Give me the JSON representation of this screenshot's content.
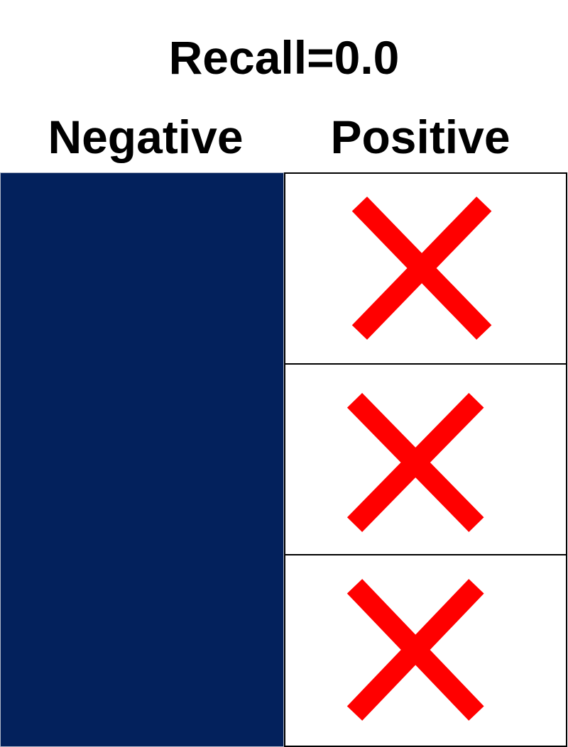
{
  "title": "Recall=0.0",
  "columns": {
    "negative": {
      "label": "Negative",
      "fill_color": "#03215c"
    },
    "positive": {
      "label": "Positive",
      "cells": [
        {
          "mark": "x-mark-icon"
        },
        {
          "mark": "x-mark-icon"
        },
        {
          "mark": "x-mark-icon"
        }
      ]
    }
  },
  "colors": {
    "x_mark": "#ff0000",
    "cell_border": "#000000"
  }
}
